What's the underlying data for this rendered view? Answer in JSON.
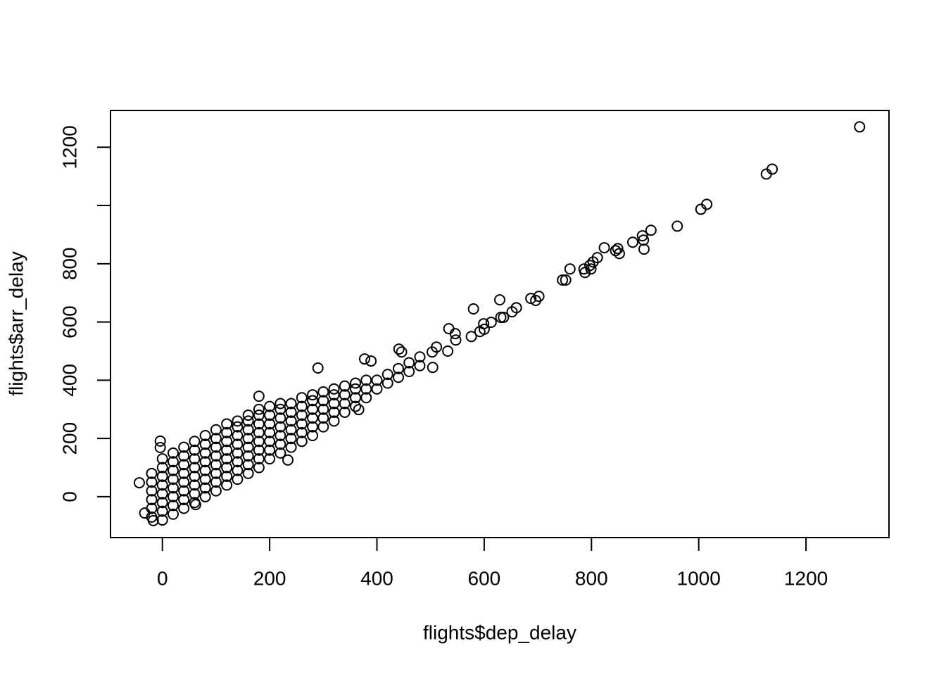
{
  "chart_data": {
    "type": "scatter",
    "x_label": "flights$dep_delay",
    "y_label": "flights$arr_delay",
    "xlim": [
      -96.76,
      1354.76
    ],
    "ylim": [
      -140.3,
      1326.3
    ],
    "xticks": [
      0,
      200,
      400,
      600,
      800,
      1000,
      1200
    ],
    "yticks": [
      0,
      200,
      400,
      600,
      800,
      {
        "value": 1000,
        "label": null
      },
      1200
    ],
    "color": "#000000",
    "x": [
      -20,
      -20,
      -20,
      -20,
      -20,
      -20,
      0,
      0,
      0,
      0,
      0,
      0,
      0,
      0,
      20,
      20,
      20,
      20,
      20,
      20,
      20,
      20,
      40,
      40,
      40,
      40,
      40,
      40,
      40,
      40,
      60,
      60,
      60,
      60,
      60,
      60,
      60,
      60,
      80,
      80,
      80,
      80,
      80,
      80,
      80,
      80,
      100,
      100,
      100,
      100,
      100,
      100,
      100,
      100,
      120,
      120,
      120,
      120,
      120,
      120,
      120,
      120,
      140,
      140,
      140,
      140,
      140,
      140,
      140,
      140,
      160,
      160,
      160,
      160,
      160,
      160,
      160,
      160,
      180,
      180,
      180,
      180,
      180,
      180,
      180,
      180,
      200,
      200,
      200,
      200,
      200,
      200,
      200,
      220,
      220,
      220,
      220,
      220,
      220,
      220,
      240,
      240,
      240,
      240,
      240,
      240,
      260,
      260,
      260,
      260,
      260,
      260,
      280,
      280,
      280,
      280,
      280,
      280,
      300,
      300,
      300,
      300,
      300,
      320,
      320,
      320,
      320,
      320,
      340,
      340,
      340,
      340,
      360,
      360,
      360,
      360,
      380,
      380,
      380,
      400,
      400,
      420,
      420,
      440,
      440,
      460,
      460,
      480,
      480,
      1300,
      1126,
      1137,
      1004,
      1015,
      960,
      911,
      895,
      897,
      898,
      877,
      824,
      845,
      852,
      849,
      811,
      803,
      797,
      799,
      786,
      788,
      760,
      752,
      746,
      702,
      687,
      696,
      629,
      580,
      660,
      652,
      636,
      631,
      613,
      599,
      600,
      592,
      546,
      534,
      547,
      576,
      -43,
      234,
      511,
      503,
      532,
      504,
      441,
      446,
      377,
      389,
      290,
      180,
      366,
      -4,
      -4,
      -33,
      -17,
      62
    ],
    "values": [
      -70,
      -40,
      -10,
      20,
      50,
      80,
      -80,
      -50,
      -20,
      10,
      40,
      70,
      100,
      130,
      -60,
      -30,
      0,
      30,
      60,
      90,
      120,
      150,
      -40,
      -10,
      20,
      50,
      80,
      110,
      140,
      170,
      -20,
      10,
      40,
      70,
      100,
      130,
      160,
      190,
      0,
      30,
      60,
      90,
      120,
      150,
      180,
      210,
      20,
      50,
      80,
      110,
      140,
      170,
      200,
      230,
      40,
      70,
      100,
      130,
      160,
      190,
      220,
      250,
      60,
      90,
      120,
      150,
      180,
      210,
      240,
      260,
      80,
      110,
      140,
      170,
      200,
      230,
      260,
      280,
      100,
      130,
      160,
      190,
      220,
      250,
      280,
      300,
      130,
      160,
      190,
      220,
      250,
      280,
      310,
      150,
      180,
      210,
      240,
      270,
      300,
      320,
      170,
      200,
      230,
      260,
      290,
      320,
      190,
      220,
      250,
      280,
      310,
      340,
      210,
      240,
      270,
      300,
      330,
      350,
      240,
      270,
      300,
      330,
      360,
      260,
      290,
      320,
      350,
      370,
      290,
      320,
      350,
      380,
      310,
      340,
      370,
      390,
      340,
      370,
      400,
      370,
      400,
      390,
      420,
      410,
      440,
      430,
      460,
      450,
      480,
      1270,
      1108,
      1125,
      987,
      1004,
      929,
      915,
      896,
      881,
      850,
      874,
      855,
      845,
      835,
      852,
      821,
      806,
      794,
      782,
      782,
      770,
      782,
      744,
      744,
      688,
      681,
      674,
      676,
      645,
      649,
      635,
      616,
      616,
      599,
      594,
      575,
      567,
      560,
      577,
      538,
      550,
      48,
      126,
      514,
      497,
      500,
      444,
      507,
      497,
      473,
      466,
      442,
      345,
      299,
      191,
      169,
      -56,
      -82,
      -27
    ]
  }
}
